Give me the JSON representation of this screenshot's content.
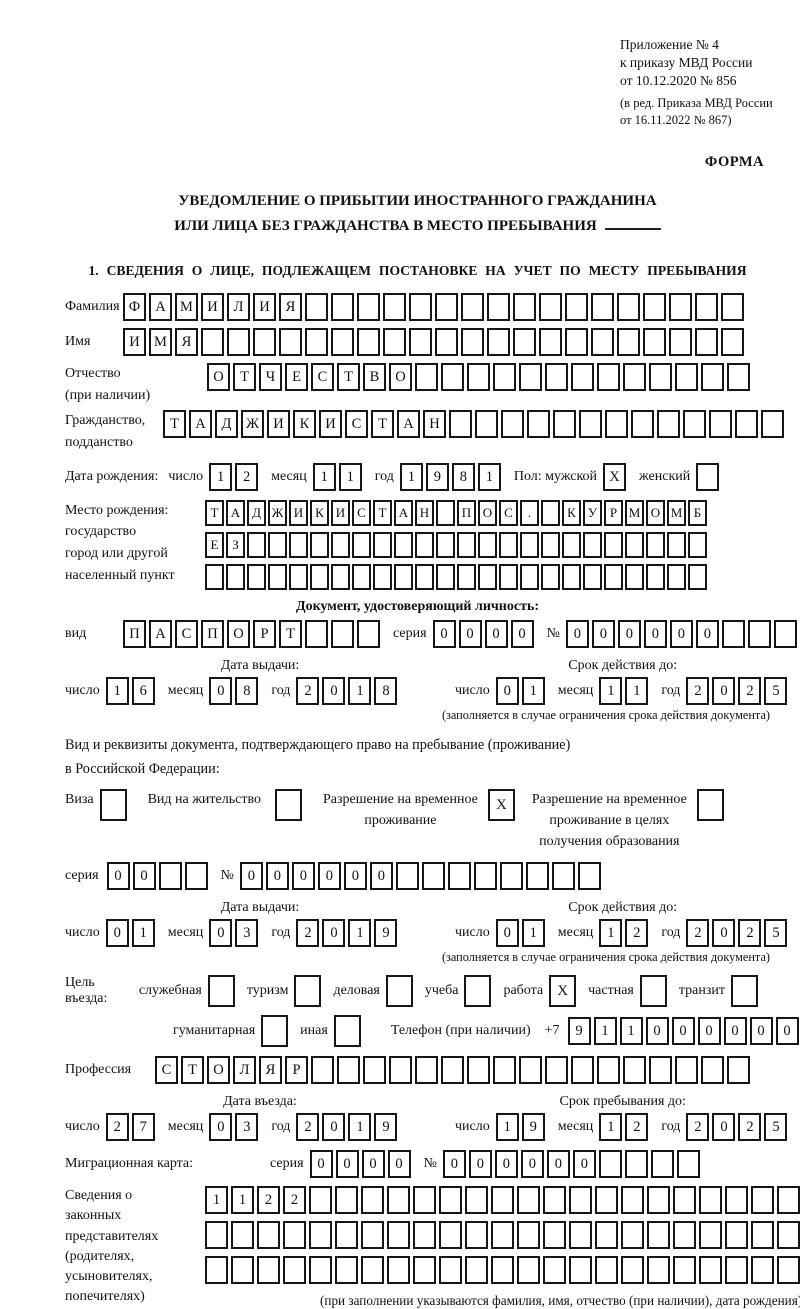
{
  "colors": {
    "paper": "#ffffff",
    "ink": "#161616"
  },
  "header": {
    "appendix_lines": [
      "Приложение № 4",
      "к приказу МВД России",
      "от 10.12.2020 № 856"
    ],
    "edition_lines": [
      "(в ред. Приказа МВД России",
      "от 16.11.2022 № 867)"
    ],
    "form_label": "ФОРМА"
  },
  "title": {
    "line1": "УВЕДОМЛЕНИЕ О ПРИБЫТИИ ИНОСТРАННОГО ГРАЖДАНИНА",
    "line2": "ИЛИ ЛИЦА БЕЗ ГРАЖДАНСТВА В МЕСТО ПРЕБЫВАНИЯ"
  },
  "section1": {
    "heading": "1. СВЕДЕНИЯ О ЛИЦЕ, ПОДЛЕЖАЩЕМ ПОСТАНОВКЕ НА УЧЕТ ПО МЕСТУ ПРЕБЫВАНИЯ"
  },
  "surname": {
    "label": "Фамилия",
    "box": {
      "value": "ФАМИЛИЯ",
      "cells": 24
    }
  },
  "firstname": {
    "label": "Имя",
    "box": {
      "value": "ИМЯ",
      "cells": 24
    }
  },
  "patronymic": {
    "label": "Отчество",
    "label2": "(при наличии)",
    "box": {
      "value": "ОТЧЕСТВО",
      "cells": 21
    }
  },
  "citizenship": {
    "label": "Гражданство,",
    "label2": "подданство",
    "box": {
      "value": "ТАДЖИКИСТАН",
      "cells": 24
    }
  },
  "birth_date": {
    "label": "Дата рождения:",
    "day_label": "число",
    "day": {
      "value": "12",
      "cells": 2
    },
    "month_label": "месяц",
    "month": {
      "value": "11",
      "cells": 2
    },
    "year_label": "год",
    "year": {
      "value": "1981",
      "cells": 4
    },
    "sex_label": "Пол:",
    "male_label": "мужской",
    "male": {
      "value": "X",
      "cells": 1
    },
    "female_label": "женский",
    "female": {
      "value": "",
      "cells": 1
    }
  },
  "birth_place": {
    "label_lines": [
      "Место рождения:",
      "государство",
      "город или другой",
      "населенный пункт"
    ],
    "row1": {
      "value": "ТАДЖИКИСТАН ПОС. КУРМОМБ",
      "cells": 24
    },
    "row2": {
      "value": "ЕЗ",
      "cells": 24
    },
    "row3": {
      "value": "",
      "cells": 24
    }
  },
  "identity_doc": {
    "heading": "Документ, удостоверяющий личность:",
    "type_label": "вид",
    "type": {
      "value": "ПАСПОРТ",
      "cells": 10
    },
    "series_label": "серия",
    "series": {
      "value": "0000",
      "cells": 4
    },
    "number_label": "№",
    "number": {
      "value": "000000",
      "cells": 11
    },
    "issue_heading": "Дата выдачи:",
    "issue_day_label": "число",
    "issue_day": {
      "value": "16",
      "cells": 2
    },
    "issue_month_label": "месяц",
    "issue_month": {
      "value": "08",
      "cells": 2
    },
    "issue_year_label": "год",
    "issue_year": {
      "value": "2018",
      "cells": 4
    },
    "valid_heading": "Срок действия до:",
    "valid_day_label": "число",
    "valid_day": {
      "value": "01",
      "cells": 2
    },
    "valid_month_label": "месяц",
    "valid_month": {
      "value": "11",
      "cells": 2
    },
    "valid_year_label": "год",
    "valid_year": {
      "value": "2025",
      "cells": 4
    },
    "note": "(заполняется в случае ограничения срока действия документа)"
  },
  "residence_doc": {
    "intro1": "Вид и реквизиты документа, подтверждающего право на пребывание (проживание)",
    "intro2": "в Российской Федерации:",
    "visa": {
      "lines": [
        "Виза"
      ],
      "value": ""
    },
    "residence": {
      "lines": [
        "Вид на жительство"
      ],
      "value": ""
    },
    "temp": {
      "lines": [
        "Разрешение на временное",
        "проживание"
      ],
      "value": "X"
    },
    "temp_edu": {
      "lines": [
        "Разрешение на временное",
        "проживание в целях",
        "получения образования"
      ],
      "value": ""
    },
    "series_label": "серия",
    "series": {
      "value": "00",
      "cells": 4
    },
    "number_label": "№",
    "number": {
      "value": "000000",
      "cells": 14
    },
    "issue_heading": "Дата выдачи:",
    "issue_day_label": "число",
    "issue_day": {
      "value": "01",
      "cells": 2
    },
    "issue_month_label": "месяц",
    "issue_month": {
      "value": "03",
      "cells": 2
    },
    "issue_year_label": "год",
    "issue_year": {
      "value": "2019",
      "cells": 4
    },
    "valid_heading": "Срок действия до:",
    "valid_day_label": "число",
    "valid_day": {
      "value": "01",
      "cells": 2
    },
    "valid_month_label": "месяц",
    "valid_month": {
      "value": "12",
      "cells": 2
    },
    "valid_year_label": "год",
    "valid_year": {
      "value": "2025",
      "cells": 4
    },
    "note": "(заполняется в случае ограничения срока действия документа)"
  },
  "purpose": {
    "label": "Цель въезда:",
    "options_line1": [
      {
        "label": "служебная",
        "value": ""
      },
      {
        "label": "туризм",
        "value": ""
      },
      {
        "label": "деловая",
        "value": ""
      },
      {
        "label": "учеба",
        "value": ""
      },
      {
        "label": "работа",
        "value": "X"
      },
      {
        "label": "частная",
        "value": ""
      },
      {
        "label": "транзит",
        "value": ""
      }
    ],
    "options_line2": [
      {
        "label": "гуманитарная",
        "value": ""
      },
      {
        "label": "иная",
        "value": ""
      }
    ],
    "phone_label": "Телефон (при наличии)",
    "phone_prefix": "+7",
    "phone": {
      "value": "911000000",
      "cells": 10
    }
  },
  "profession": {
    "label": "Профессия",
    "box": {
      "value": "СТОЛЯР",
      "cells": 23
    }
  },
  "entry": {
    "entry_heading": "Дата въезда:",
    "entry_day_label": "число",
    "entry_day": {
      "value": "27",
      "cells": 2
    },
    "entry_month_label": "месяц",
    "entry_month": {
      "value": "03",
      "cells": 2
    },
    "entry_year_label": "год",
    "entry_year": {
      "value": "2019",
      "cells": 4
    },
    "stay_heading": "Срок пребывания до:",
    "stay_day_label": "число",
    "stay_day": {
      "value": "19",
      "cells": 2
    },
    "stay_month_label": "месяц",
    "stay_month": {
      "value": "12",
      "cells": 2
    },
    "stay_year_label": "год",
    "stay_year": {
      "value": "2025",
      "cells": 4
    }
  },
  "migration_card": {
    "label": "Миграционная карта:",
    "series_label": "серия",
    "series": {
      "value": "0000",
      "cells": 4
    },
    "number_label": "№",
    "number": {
      "value": "000000",
      "cells": 10
    }
  },
  "legal_reps": {
    "label_lines": [
      "Сведения о",
      "законных",
      "представителях",
      "(родителях,",
      "усыновителях,",
      "попечителях)"
    ],
    "row1": {
      "value": "1122",
      "cells": 23
    },
    "row2": {
      "value": "",
      "cells": 23
    },
    "row3": {
      "value": "",
      "cells": 23
    },
    "caption": "(при заполнении указываются фамилия, имя, отчество (при наличии), дата рождения)"
  }
}
